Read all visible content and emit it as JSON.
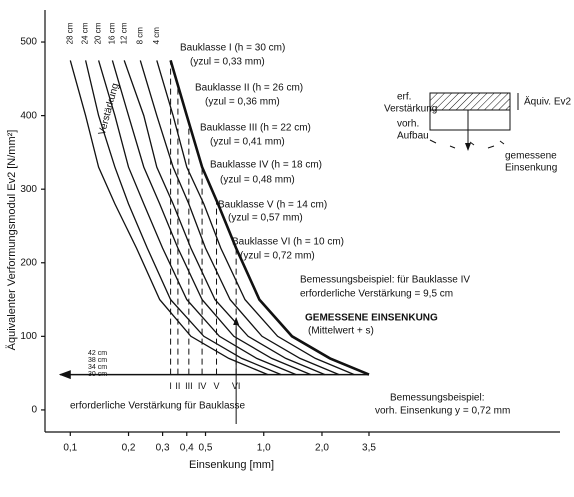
{
  "chart_data": {
    "type": "line",
    "log_x": true,
    "x_label": "Einsenkung [mm]",
    "y_label": "Äquivalenter Verformungsmodul Ev2 [N/mm²]",
    "xlim": [
      0.074,
      34
    ],
    "ylim": [
      -30,
      540
    ],
    "xticks": [
      {
        "value": 0.1,
        "label": "0,1"
      },
      {
        "value": 0.2,
        "label": "0,2"
      },
      {
        "value": 0.3,
        "label": "0,3"
      },
      {
        "value": 0.4,
        "label": "0,4"
      },
      {
        "value": 0.5,
        "label": "0,5"
      },
      {
        "value": 1.0,
        "label": "1,0"
      },
      {
        "value": 2.0,
        "label": "2,0"
      },
      {
        "value": 3.5,
        "label": "3,5"
      }
    ],
    "yticks": [
      0,
      100,
      200,
      300,
      400,
      500
    ],
    "series": [
      {
        "name": "GEMESSENE EINSENKUNG",
        "color": "#111111",
        "x": [
          0.33,
          0.4,
          0.48,
          0.58,
          0.72,
          0.95,
          1.4,
          2.2,
          3.5
        ],
        "values": [
          475,
          400,
          330,
          280,
          220,
          150,
          100,
          70,
          48
        ]
      },
      {
        "name": "4 cm",
        "color": "#111111",
        "x": [
          0.28,
          0.34,
          0.4,
          0.49,
          0.6,
          0.8,
          1.18,
          1.85,
          2.94
        ],
        "values": [
          475,
          400,
          330,
          280,
          220,
          150,
          100,
          70,
          48
        ]
      },
      {
        "name": "8 cm",
        "color": "#111111",
        "x": [
          0.23,
          0.28,
          0.34,
          0.41,
          0.5,
          0.67,
          0.98,
          1.54,
          2.45
        ],
        "values": [
          475,
          400,
          330,
          280,
          220,
          150,
          100,
          70,
          48
        ]
      },
      {
        "name": "12 cm",
        "color": "#111111",
        "x": [
          0.19,
          0.24,
          0.28,
          0.34,
          0.42,
          0.56,
          0.83,
          1.3,
          2.07
        ],
        "values": [
          475,
          400,
          330,
          280,
          220,
          150,
          100,
          70,
          48
        ]
      },
      {
        "name": "16 cm",
        "color": "#111111",
        "x": [
          0.165,
          0.2,
          0.24,
          0.29,
          0.36,
          0.48,
          0.7,
          1.1,
          1.75
        ],
        "values": [
          475,
          400,
          330,
          280,
          220,
          150,
          100,
          70,
          48
        ]
      },
      {
        "name": "20 cm",
        "color": "#111111",
        "x": [
          0.14,
          0.17,
          0.2,
          0.24,
          0.3,
          0.4,
          0.59,
          0.92,
          1.47
        ],
        "values": [
          475,
          400,
          330,
          280,
          220,
          150,
          100,
          70,
          48
        ]
      },
      {
        "name": "24 cm",
        "color": "#111111",
        "x": [
          0.12,
          0.14,
          0.17,
          0.2,
          0.25,
          0.33,
          0.49,
          0.77,
          1.23
        ],
        "values": [
          475,
          400,
          330,
          280,
          220,
          150,
          100,
          70,
          48
        ]
      },
      {
        "name": "28 cm",
        "color": "#111111",
        "x": [
          0.1,
          0.12,
          0.14,
          0.17,
          0.22,
          0.29,
          0.42,
          0.66,
          1.05
        ],
        "values": [
          475,
          400,
          330,
          280,
          220,
          150,
          100,
          70,
          48
        ]
      }
    ],
    "classes": {
      "labels": [
        "I",
        "II",
        "III",
        "IV",
        "V",
        "VI"
      ],
      "x": [
        0.33,
        0.36,
        0.41,
        0.48,
        0.57,
        0.72
      ],
      "base": 48
    },
    "annotations": [
      "Verstärkung",
      "Bauklasse I (h = 30 cm)",
      "(yzul = 0,33 mm)",
      "Bauklasse II (h = 26 cm)",
      "(yzul = 0,36 mm)",
      "Bauklasse III (h = 22 cm)",
      "(yzul = 0,41 mm)",
      "Bauklasse IV (h = 18 cm)",
      "(yzul = 0,48 mm)",
      "Bauklasse V (h = 14 cm)",
      "(yzul = 0,57 mm)",
      "Bauklasse VI (h = 10 cm)",
      "(yzul = 0,72 mm)",
      "Bemessungsbeispiel: für Bauklasse IV",
      "erforderliche Verstärkung = 9,5 cm",
      "(Mittelwert + s)",
      "erforderliche Verstärkung für Bauklasse",
      "Bemessungsbeispiel:",
      "vorh. Einsenkung y = 0,72 mm",
      "42 cm",
      "38 cm",
      "34 cm",
      "30 cm"
    ]
  },
  "inset": {
    "erf": "erf.",
    "verst": "Verstärkung",
    "vorh": "vorh.",
    "aufbau": "Aufbau",
    "aequiv": "Äquiv. Ev2",
    "gem1": "gemessene",
    "gem2": "Einsenkung"
  }
}
